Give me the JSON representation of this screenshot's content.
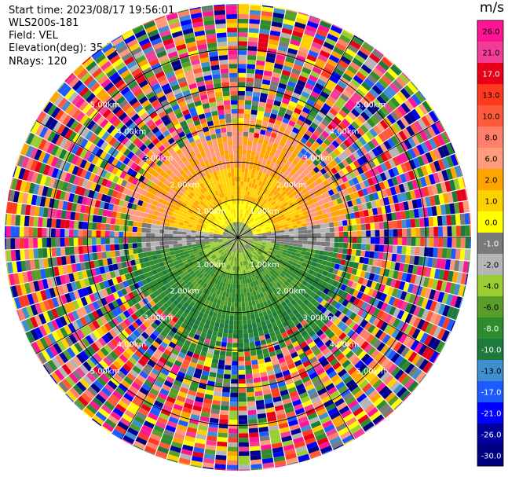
{
  "header": {
    "start_time": "Start time: 2023/08/17 19:56:01",
    "instrument": "WLS200s-181",
    "field": "Field: VEL",
    "elevation": "Elevation(deg): 35.30",
    "nrays": "NRays: 120"
  },
  "colorbar": {
    "unit": "m/s",
    "ticks": [
      "26.0",
      "21.0",
      "17.0",
      "13.0",
      "10.0",
      "8.0",
      "6.0",
      "2.0",
      "1.0",
      "0.0",
      "-1.0",
      "-2.0",
      "-4.0",
      "-6.0",
      "-8.0",
      "-10.0",
      "-13.0",
      "-17.0",
      "-21.0",
      "-26.0",
      "-30.0"
    ],
    "colors": [
      "#ff1493",
      "#f23c96",
      "#e8001a",
      "#ff3a1e",
      "#ff5a3c",
      "#ff7f6b",
      "#ff9a7a",
      "#ffa500",
      "#ffd000",
      "#ffff00",
      "#7a7a7a",
      "#b5b5b5",
      "#9acd32",
      "#5a9e2a",
      "#2e8b2e",
      "#1e7a3c",
      "#3f8fd0",
      "#1e5bff",
      "#0000ff",
      "#00009a",
      "#000080"
    ]
  },
  "chart_data": {
    "type": "ppi",
    "field": "VEL",
    "n_rays": 120,
    "ring_labels": [
      "1.00km",
      "2.00km",
      "3.00km",
      "4.00km",
      "5.00km"
    ],
    "ring_distances_km": [
      1,
      2,
      3,
      4,
      5
    ],
    "max_range_km": 6.2,
    "value_range": [
      -30,
      26
    ]
  }
}
